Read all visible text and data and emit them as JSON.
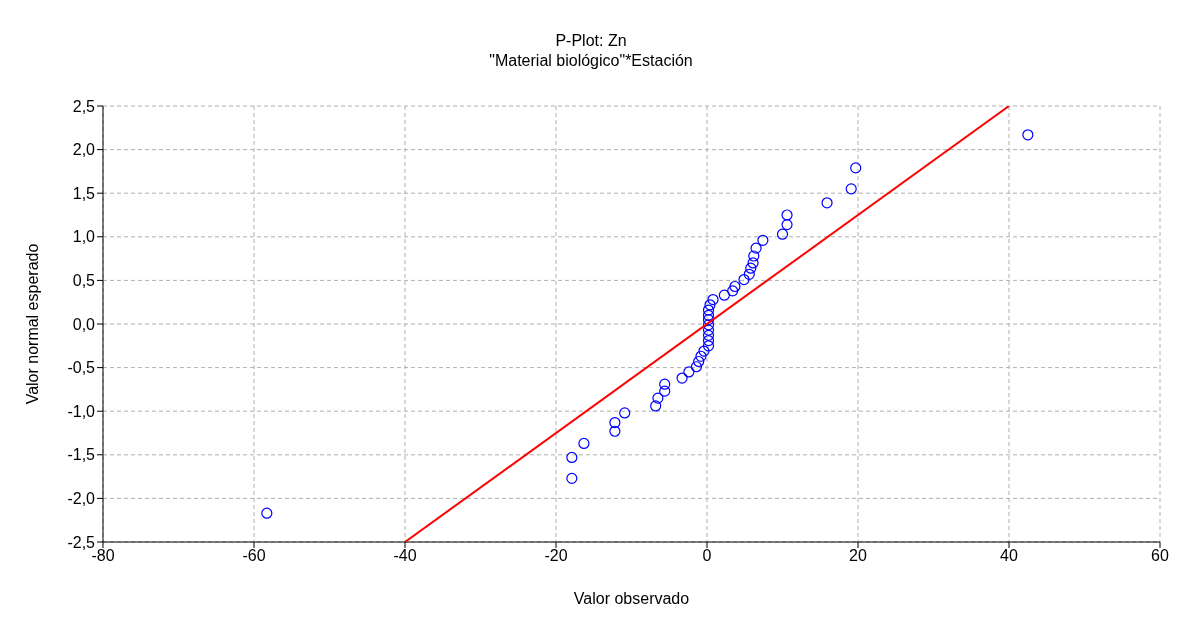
{
  "chart_data": {
    "type": "scatter",
    "title": "P-Plot: Zn",
    "subtitle": "\"Material biológico\"*Estación",
    "xlabel": "Valor observado",
    "ylabel": "Valor normal esperado",
    "xlim": [
      -80,
      60
    ],
    "xticks": [
      -80,
      -60,
      -40,
      -20,
      0,
      20,
      40,
      60
    ],
    "ylim": [
      -2.5,
      2.5
    ],
    "yticks": [
      {
        "value": -2.5,
        "label": "-2,5"
      },
      {
        "value": -2,
        "label": "-2,0"
      },
      {
        "value": -1.5,
        "label": "-1,5"
      },
      {
        "value": -1,
        "label": "-1,0"
      },
      {
        "value": -0.5,
        "label": "-0,5"
      },
      {
        "value": 0,
        "label": "0,0"
      },
      {
        "value": 0.5,
        "label": "0,5"
      },
      {
        "value": 1,
        "label": "1,0"
      },
      {
        "value": 1.5,
        "label": "1,5"
      },
      {
        "value": 2,
        "label": "2,0"
      },
      {
        "value": 2.5,
        "label": "2,5"
      }
    ],
    "grid": true,
    "marker": "circle",
    "series": [
      {
        "color": "#0000ff",
        "x": [
          -58.3,
          -17.9,
          -17.9,
          -16.3,
          -12.2,
          -12.2,
          -10.9,
          -6.8,
          -6.5,
          -5.6,
          -5.6,
          -3.3,
          -2.4,
          -1.4,
          -1.1,
          -0.8,
          -0.4,
          0.2,
          0.2,
          0.2,
          0.2,
          0.2,
          0.2,
          0.2,
          0.2,
          0.4,
          0.8,
          2.3,
          3.4,
          3.7,
          4.9,
          5.6,
          5.8,
          6.1,
          6.2,
          6.5,
          7.4,
          10.0,
          10.6,
          10.6,
          15.9,
          19.1,
          19.7,
          42.5
        ],
        "values": [
          -2.17,
          -1.77,
          -1.53,
          -1.37,
          -1.23,
          -1.13,
          -1.02,
          -0.94,
          -0.85,
          -0.77,
          -0.69,
          -0.62,
          -0.55,
          -0.49,
          -0.43,
          -0.37,
          -0.31,
          -0.25,
          -0.19,
          -0.13,
          -0.07,
          -0.01,
          0.05,
          0.1,
          0.16,
          0.22,
          0.28,
          0.33,
          0.38,
          0.43,
          0.51,
          0.57,
          0.64,
          0.7,
          0.78,
          0.87,
          0.96,
          1.03,
          1.14,
          1.25,
          1.39,
          1.55,
          1.79,
          2.17
        ]
      },
      {
        "type": "line",
        "color": "#ff0000",
        "marker": "none",
        "line_style": "solid",
        "x": [
          -40,
          40
        ],
        "values": [
          -2.5,
          2.5
        ]
      }
    ]
  }
}
